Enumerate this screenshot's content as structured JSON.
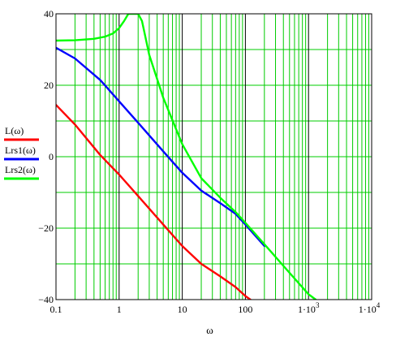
{
  "chart_data": {
    "type": "line",
    "xscale": "log",
    "xlim": [
      0.1,
      10000
    ],
    "ylim": [
      -40,
      40
    ],
    "xlabel": "ω",
    "ylabel": "",
    "grid": true,
    "grid_color": "#00cc00",
    "legend_position": "left",
    "x_ticks": [
      {
        "value": 0.1,
        "label": "0.1"
      },
      {
        "value": 1,
        "label": "1"
      },
      {
        "value": 10,
        "label": "10"
      },
      {
        "value": 100,
        "label": "100"
      },
      {
        "value": 1000,
        "base": "1·10",
        "exp": "3"
      },
      {
        "value": 10000,
        "base": "1·10",
        "exp": "4"
      }
    ],
    "y_ticks": [
      {
        "value": 40,
        "label": "40"
      },
      {
        "value": 20,
        "label": "20"
      },
      {
        "value": 0,
        "label": "0"
      },
      {
        "value": -20,
        "label": "−20"
      },
      {
        "value": -40,
        "label": "−40"
      }
    ],
    "series": [
      {
        "name": "L(ω)",
        "color": "#ff0000",
        "points": [
          [
            0.1,
            14.5
          ],
          [
            0.2,
            9
          ],
          [
            0.5,
            0.5
          ],
          [
            1,
            -5
          ],
          [
            2,
            -11
          ],
          [
            5,
            -19
          ],
          [
            10,
            -25
          ],
          [
            20,
            -30
          ],
          [
            40,
            -33.5
          ],
          [
            70,
            -36.5
          ],
          [
            100,
            -39
          ],
          [
            120,
            -40
          ]
        ]
      },
      {
        "name": "Lrs1(ω)",
        "color": "#0000ff",
        "points": [
          [
            0.1,
            30.5
          ],
          [
            0.2,
            27.5
          ],
          [
            0.5,
            21.5
          ],
          [
            1,
            15.5
          ],
          [
            2,
            9.5
          ],
          [
            5,
            1.5
          ],
          [
            10,
            -4.5
          ],
          [
            20,
            -9.5
          ],
          [
            40,
            -13
          ],
          [
            70,
            -16
          ],
          [
            100,
            -19
          ],
          [
            200,
            -25
          ]
        ]
      },
      {
        "name": "Lrs2(ω)",
        "color": "#00ff00",
        "points": [
          [
            0.1,
            32.5
          ],
          [
            0.2,
            32.6
          ],
          [
            0.4,
            33
          ],
          [
            0.6,
            33.6
          ],
          [
            0.8,
            34.5
          ],
          [
            1,
            36
          ],
          [
            1.2,
            38
          ],
          [
            1.4,
            40
          ],
          [
            2,
            40
          ],
          [
            2.3,
            38
          ],
          [
            3,
            28.5
          ],
          [
            5,
            16.5
          ],
          [
            10,
            3.5
          ],
          [
            20,
            -6
          ],
          [
            40,
            -11.5
          ],
          [
            70,
            -15.5
          ],
          [
            100,
            -18.5
          ],
          [
            200,
            -24.5
          ],
          [
            500,
            -32.5
          ],
          [
            1000,
            -38.5
          ],
          [
            1300,
            -40
          ]
        ]
      }
    ]
  }
}
